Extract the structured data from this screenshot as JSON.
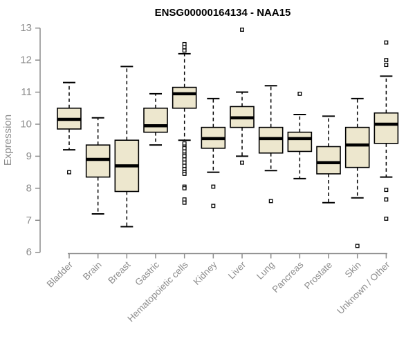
{
  "chart_data": {
    "type": "boxplot",
    "title": "ENSG00000164134 - NAA15",
    "ylabel": "Expression",
    "xlabel": "",
    "ylim": [
      6,
      13
    ],
    "yticks": [
      6,
      7,
      8,
      9,
      10,
      11,
      12,
      13
    ],
    "grid": false,
    "legend": "none",
    "box_fill": "#EDE7CE",
    "box_stroke": "#000000",
    "axis_color": "#8C8C8C",
    "categories": [
      "Bladder",
      "Brain",
      "Breast",
      "Gastric",
      "Hematopoietic cells",
      "Kidney",
      "Liver",
      "Lung",
      "Pancreas",
      "Prostate",
      "Skin",
      "Unknown / Other"
    ],
    "series": [
      {
        "label": "Bladder",
        "whisker_low": 9.2,
        "q1": 9.85,
        "median": 10.15,
        "q3": 10.5,
        "whisker_high": 11.3,
        "outliers": [
          8.5
        ]
      },
      {
        "label": "Brain",
        "whisker_low": 7.2,
        "q1": 8.35,
        "median": 8.9,
        "q3": 9.35,
        "whisker_high": 10.2,
        "outliers": []
      },
      {
        "label": "Breast",
        "whisker_low": 6.8,
        "q1": 7.9,
        "median": 8.7,
        "q3": 9.5,
        "whisker_high": 11.8,
        "outliers": []
      },
      {
        "label": "Gastric",
        "whisker_low": 9.35,
        "q1": 9.75,
        "median": 9.95,
        "q3": 10.5,
        "whisker_high": 10.95,
        "outliers": []
      },
      {
        "label": "Hematopoietic cells",
        "whisker_low": 9.5,
        "q1": 10.5,
        "median": 10.95,
        "q3": 11.15,
        "whisker_high": 12.2,
        "outliers": [
          12.5,
          12.4,
          12.3,
          9.4,
          9.3,
          9.25,
          9.15,
          9.05,
          9.0,
          8.9,
          8.8,
          8.7,
          8.6,
          8.5,
          8.45,
          8.05,
          8.0,
          7.65,
          7.55
        ]
      },
      {
        "label": "Kidney",
        "whisker_low": 8.5,
        "q1": 9.25,
        "median": 9.55,
        "q3": 9.9,
        "whisker_high": 10.8,
        "outliers": [
          8.05,
          7.45
        ]
      },
      {
        "label": "Liver",
        "whisker_low": 9.0,
        "q1": 9.9,
        "median": 10.2,
        "q3": 10.55,
        "whisker_high": 11.0,
        "outliers": [
          12.95,
          8.8
        ]
      },
      {
        "label": "Lung",
        "whisker_low": 8.55,
        "q1": 9.1,
        "median": 9.55,
        "q3": 9.9,
        "whisker_high": 11.2,
        "outliers": [
          7.6
        ]
      },
      {
        "label": "Pancreas",
        "whisker_low": 8.3,
        "q1": 9.15,
        "median": 9.55,
        "q3": 9.75,
        "whisker_high": 10.3,
        "outliers": [
          10.95
        ]
      },
      {
        "label": "Prostate",
        "whisker_low": 7.55,
        "q1": 8.45,
        "median": 8.8,
        "q3": 9.3,
        "whisker_high": 10.25,
        "outliers": []
      },
      {
        "label": "Skin",
        "whisker_low": 7.7,
        "q1": 8.65,
        "median": 9.35,
        "q3": 9.9,
        "whisker_high": 10.8,
        "outliers": [
          6.2
        ]
      },
      {
        "label": "Unknown / Other",
        "whisker_low": 8.35,
        "q1": 9.4,
        "median": 10.0,
        "q3": 10.35,
        "whisker_high": 11.5,
        "outliers": [
          12.55,
          12.0,
          11.85,
          7.95,
          7.65,
          7.05
        ]
      }
    ]
  }
}
